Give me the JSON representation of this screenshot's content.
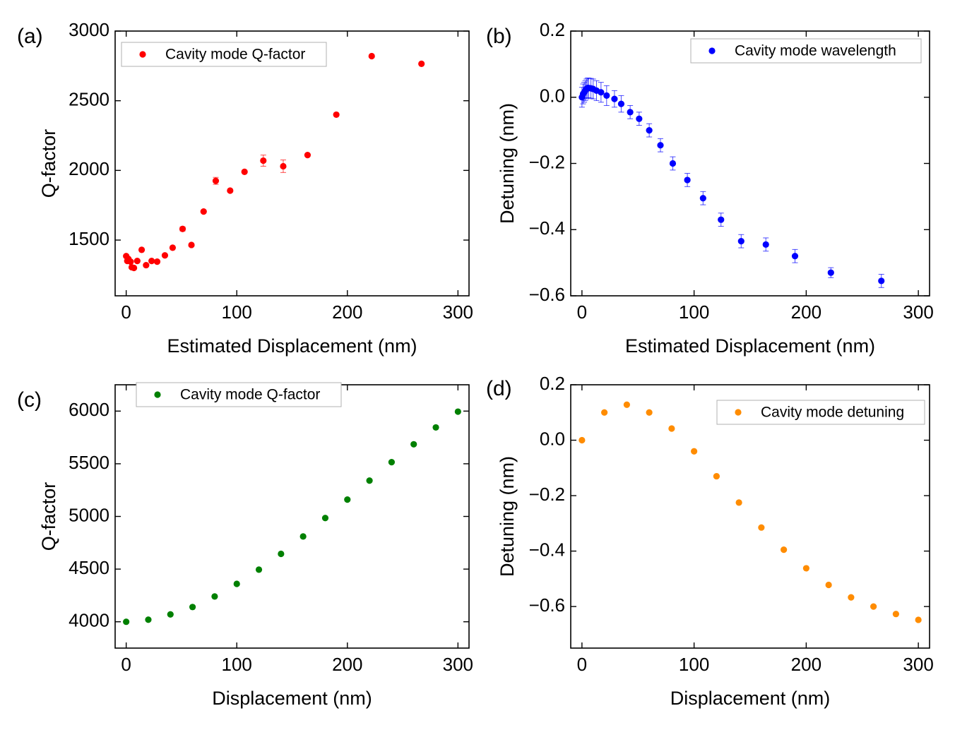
{
  "chart_data": [
    {
      "panel_label": "(a)",
      "type": "scatter",
      "color": "#ff0000",
      "legend": "Cavity mode Q-factor",
      "legend_position": "top-left",
      "xlabel": "Estimated Displacement (nm)",
      "ylabel": "Q-factor",
      "xlim": [
        -10,
        310
      ],
      "ylim": [
        1100,
        3000
      ],
      "xticks": [
        0,
        100,
        200,
        300
      ],
      "yticks": [
        1500,
        2000,
        2500,
        3000
      ],
      "x": [
        0,
        1,
        2,
        4,
        5,
        7,
        10,
        14,
        18,
        23,
        28,
        35,
        42,
        51,
        59,
        70,
        81,
        94,
        107,
        124,
        142,
        164,
        190,
        222,
        267
      ],
      "y": [
        1385,
        1350,
        1365,
        1345,
        1305,
        1300,
        1350,
        1430,
        1320,
        1350,
        1345,
        1390,
        1445,
        1580,
        1465,
        1705,
        1925,
        1855,
        1990,
        2070,
        2030,
        2110,
        2400,
        2820,
        2765
      ],
      "yerr": [
        0,
        0,
        0,
        0,
        0,
        0,
        0,
        0,
        0,
        0,
        0,
        0,
        0,
        15,
        0,
        0,
        25,
        0,
        0,
        40,
        45,
        0,
        0,
        0,
        0
      ]
    },
    {
      "panel_label": "(b)",
      "type": "scatter",
      "color": "#0000ff",
      "legend": "Cavity mode wavelength",
      "legend_position": "top-right",
      "xlabel": "Estimated Displacement (nm)",
      "ylabel": "Detuning (nm)",
      "xlim": [
        -10,
        310
      ],
      "ylim": [
        -0.6,
        0.2
      ],
      "xticks": [
        0,
        100,
        200,
        300
      ],
      "yticks": [
        -0.6,
        -0.4,
        -0.2,
        0.0,
        0.2
      ],
      "ytick_labels": [
        "−0.6",
        "−0.4",
        "−0.2",
        "0.0",
        "0.2"
      ],
      "x": [
        0,
        1,
        2,
        3,
        4,
        5,
        6,
        8,
        10,
        13,
        17,
        22,
        29,
        35,
        43,
        51,
        60,
        70,
        81,
        94,
        108,
        124,
        142,
        164,
        190,
        222,
        267
      ],
      "y": [
        0.0,
        0.01,
        0.015,
        0.02,
        0.025,
        0.028,
        0.028,
        0.027,
        0.025,
        0.02,
        0.015,
        0.005,
        -0.005,
        -0.02,
        -0.045,
        -0.065,
        -0.1,
        -0.145,
        -0.2,
        -0.25,
        -0.305,
        -0.37,
        -0.435,
        -0.445,
        -0.48,
        -0.53,
        -0.555
      ],
      "yerr": [
        0.03,
        0.03,
        0.03,
        0.03,
        0.03,
        0.03,
        0.03,
        0.03,
        0.03,
        0.03,
        0.03,
        0.03,
        0.025,
        0.025,
        0.02,
        0.02,
        0.02,
        0.02,
        0.02,
        0.02,
        0.02,
        0.02,
        0.02,
        0.02,
        0.02,
        0.015,
        0.02
      ]
    },
    {
      "panel_label": "(c)",
      "type": "scatter",
      "color": "#008000",
      "legend": "Cavity mode Q-factor",
      "legend_position": "top-left",
      "xlabel": "Displacement (nm)",
      "ylabel": "Q-factor",
      "xlim": [
        -10,
        310
      ],
      "ylim": [
        3750,
        6250
      ],
      "xticks": [
        0,
        100,
        200,
        300
      ],
      "yticks": [
        4000,
        4500,
        5000,
        5500,
        6000
      ],
      "x": [
        0,
        20,
        40,
        60,
        80,
        100,
        120,
        140,
        160,
        180,
        200,
        220,
        240,
        260,
        280,
        300
      ],
      "y": [
        4000,
        4020,
        4070,
        4140,
        4240,
        4360,
        4495,
        4645,
        4810,
        4985,
        5160,
        5340,
        5515,
        5685,
        5845,
        5995
      ]
    },
    {
      "panel_label": "(d)",
      "type": "scatter",
      "color": "#ff8c00",
      "legend": "Cavity mode detuning",
      "legend_position": "top-right",
      "xlabel": "Displacement (nm)",
      "ylabel": "Detuning (nm)",
      "xlim": [
        -10,
        310
      ],
      "ylim": [
        -0.75,
        0.2
      ],
      "xticks": [
        0,
        100,
        200,
        300
      ],
      "yticks": [
        -0.6,
        -0.4,
        -0.2,
        0.0,
        0.2
      ],
      "ytick_labels": [
        "−0.6",
        "−0.4",
        "−0.2",
        "0.0",
        "0.2"
      ],
      "x": [
        0,
        20,
        40,
        60,
        80,
        100,
        120,
        140,
        160,
        180,
        200,
        220,
        240,
        260,
        280,
        300
      ],
      "y": [
        0.0,
        0.1,
        0.128,
        0.1,
        0.042,
        -0.04,
        -0.13,
        -0.225,
        -0.315,
        -0.395,
        -0.462,
        -0.522,
        -0.567,
        -0.6,
        -0.627,
        -0.648
      ]
    }
  ]
}
